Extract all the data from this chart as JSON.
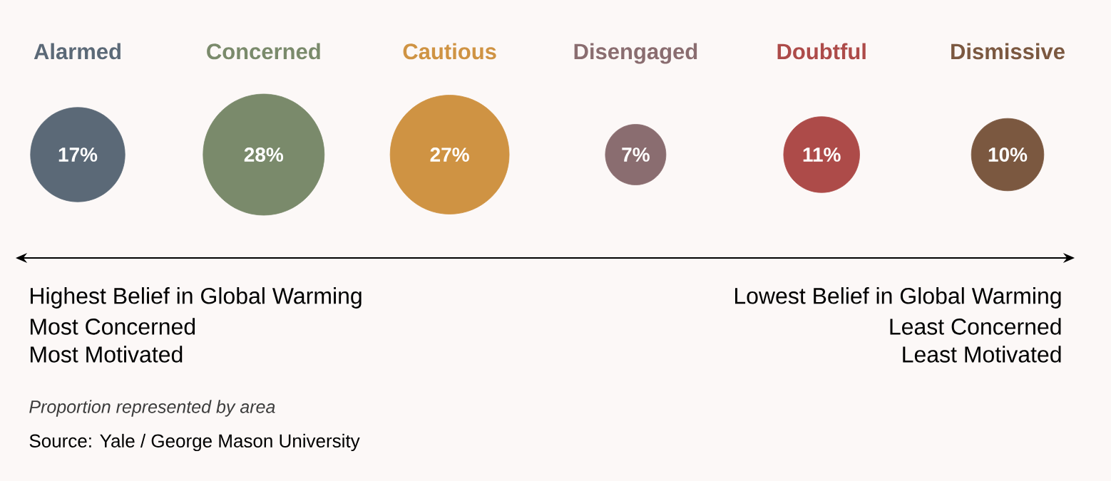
{
  "chart_data": {
    "type": "other",
    "categories": [
      "Alarmed",
      "Concerned",
      "Cautious",
      "Disengaged",
      "Doubtful",
      "Dismissive"
    ],
    "values": [
      17,
      28,
      27,
      7,
      11,
      10
    ],
    "value_labels": [
      "17%",
      "28%",
      "27%",
      "7%",
      "11%",
      "10%"
    ],
    "colors": [
      "#5b6977",
      "#7a8a6b",
      "#cf9343",
      "#8a6d70",
      "#ad4b49",
      "#7b5840"
    ],
    "annotations": [
      "Highest Belief in Global Warming",
      "Most Concerned",
      "Most Motivated",
      "Lowest Belief in Global Warming",
      "Least Concerned",
      "Least Motivated",
      "Proportion represented by area",
      "Source: Yale / George Mason University"
    ]
  }
}
